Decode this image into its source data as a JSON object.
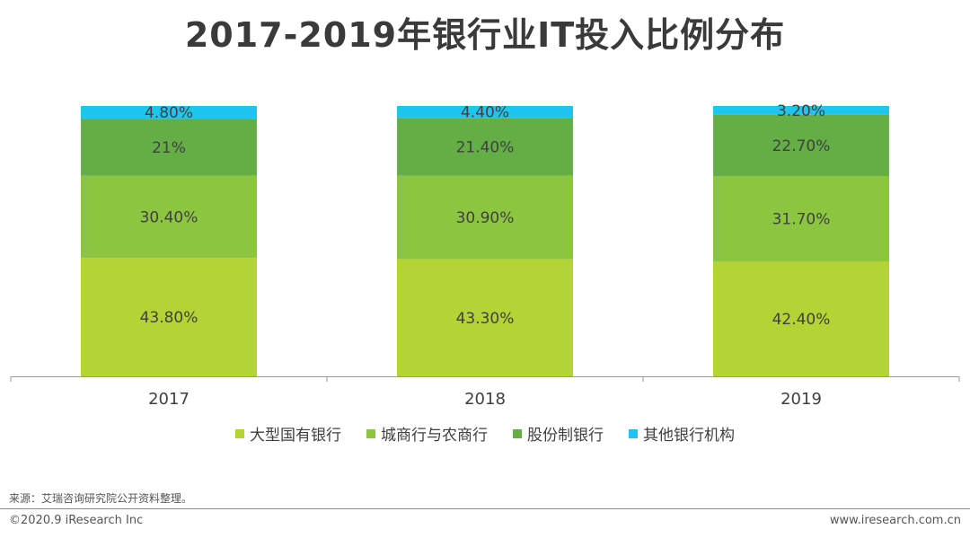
{
  "title": "2017-2019年银行业IT投入比例分布",
  "chart_data": {
    "type": "bar",
    "stacked": true,
    "percent_stacked": true,
    "categories": [
      "2017",
      "2018",
      "2019"
    ],
    "series": [
      {
        "name": "大型国有银行",
        "color": "#b4d334",
        "values": [
          43.8,
          43.3,
          42.4
        ],
        "labels": [
          "43.80%",
          "43.30%",
          "42.40%"
        ]
      },
      {
        "name": "城商行与农商行",
        "color": "#8cc641",
        "values": [
          30.4,
          30.9,
          31.7
        ],
        "labels": [
          "30.40%",
          "30.90%",
          "31.70%"
        ]
      },
      {
        "name": "股份制银行",
        "color": "#64ae46",
        "values": [
          21.0,
          21.4,
          22.7
        ],
        "labels": [
          "21%",
          "21.40%",
          "22.70%"
        ]
      },
      {
        "name": "其他银行机构",
        "color": "#1ec5ef",
        "values": [
          4.8,
          4.4,
          3.2
        ],
        "labels": [
          "4.80%",
          "4.40%",
          "3.20%"
        ]
      }
    ],
    "ylim": [
      0,
      100
    ],
    "grid": false,
    "legend_position": "bottom"
  },
  "footer": {
    "source": "来源：艾瑞咨询研究院公开资料整理。",
    "copyright": "©2020.9 iResearch Inc",
    "website": "www.iresearch.com.cn"
  }
}
